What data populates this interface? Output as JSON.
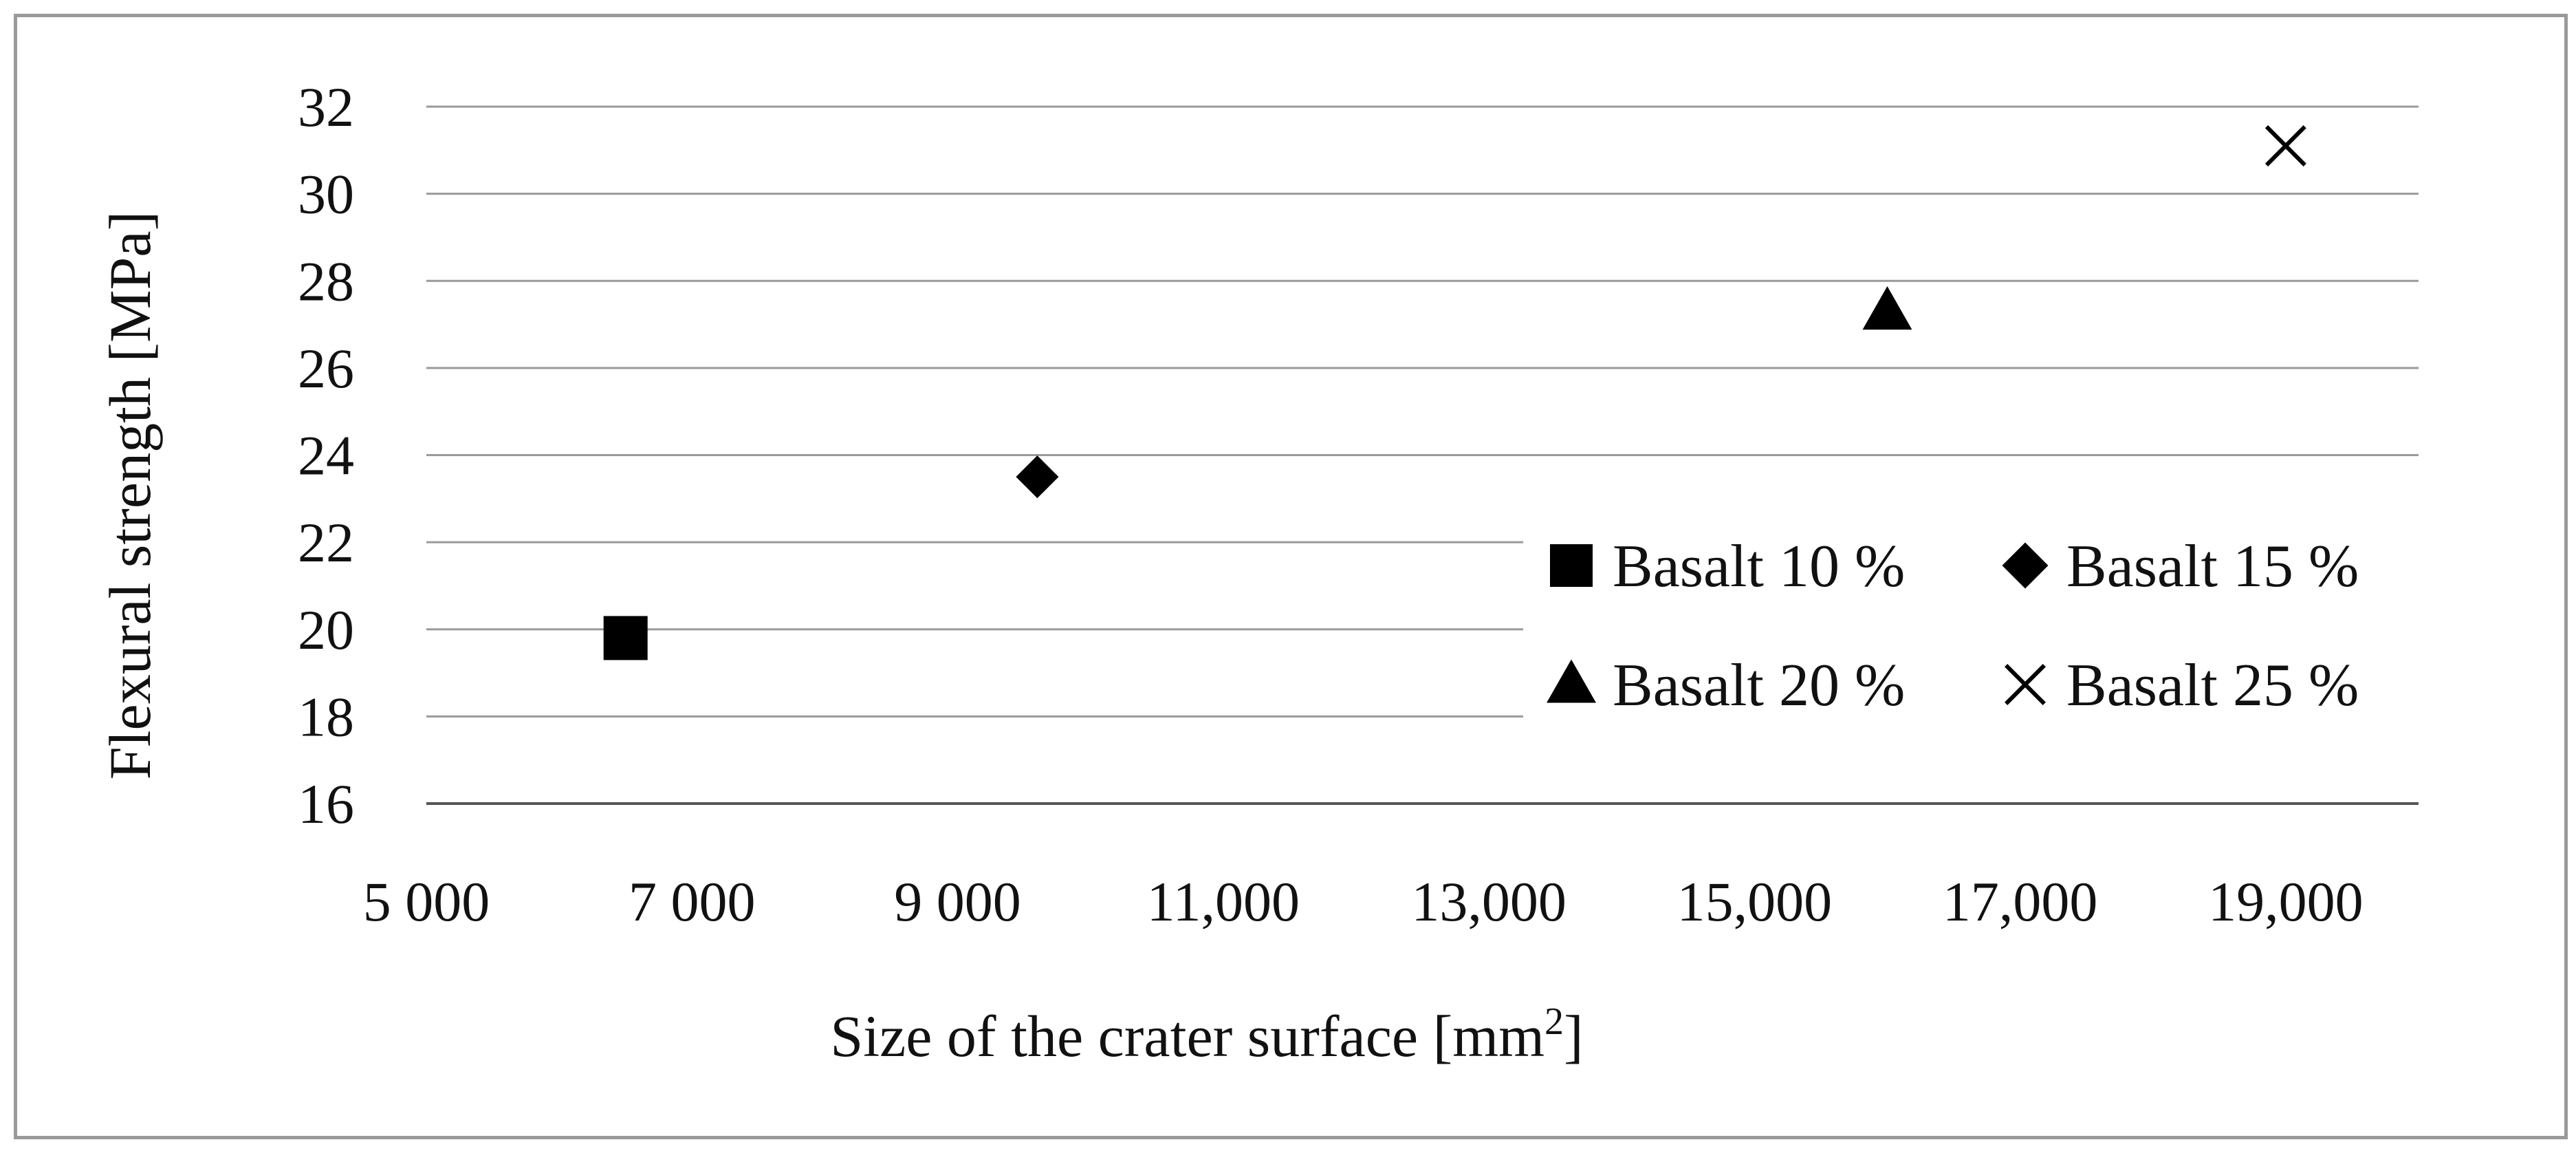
{
  "chart_data": {
    "type": "scatter",
    "title": "",
    "xlabel": "Size of the crater surface [mm",
    "xlabel_sup": "2",
    "xlabel_suffix": "]",
    "ylabel": "Flexural strength [MPa]",
    "xlim": [
      5000,
      20000
    ],
    "ylim": [
      16,
      32
    ],
    "x_ticks": [
      5000,
      7000,
      9000,
      11000,
      13000,
      15000,
      17000,
      19000
    ],
    "x_tick_labels": [
      "5 000",
      "7 000",
      "9 000",
      "11,000",
      "13,000",
      "15,000",
      "17,000",
      "19,000"
    ],
    "y_ticks": [
      16,
      18,
      20,
      22,
      24,
      26,
      28,
      30,
      32
    ],
    "y_tick_labels": [
      "16",
      "18",
      "20",
      "22",
      "24",
      "26",
      "28",
      "30",
      "32"
    ],
    "grid": "horizontal",
    "legend_position": "right",
    "series": [
      {
        "name": "Basalt 10 %",
        "marker": "square",
        "x": [
          6500
        ],
        "y": [
          19.8
        ]
      },
      {
        "name": "Basalt 15 %",
        "marker": "diamond",
        "x": [
          9600
        ],
        "y": [
          23.5
        ]
      },
      {
        "name": "Basalt 20 %",
        "marker": "triangle",
        "x": [
          16000
        ],
        "y": [
          27.3
        ]
      },
      {
        "name": "Basalt 25 %",
        "marker": "x",
        "x": [
          19000
        ],
        "y": [
          31.1
        ]
      }
    ],
    "colors": {
      "marker": "#000000",
      "grid": "#9a9a9a",
      "axis": "#555555"
    }
  }
}
